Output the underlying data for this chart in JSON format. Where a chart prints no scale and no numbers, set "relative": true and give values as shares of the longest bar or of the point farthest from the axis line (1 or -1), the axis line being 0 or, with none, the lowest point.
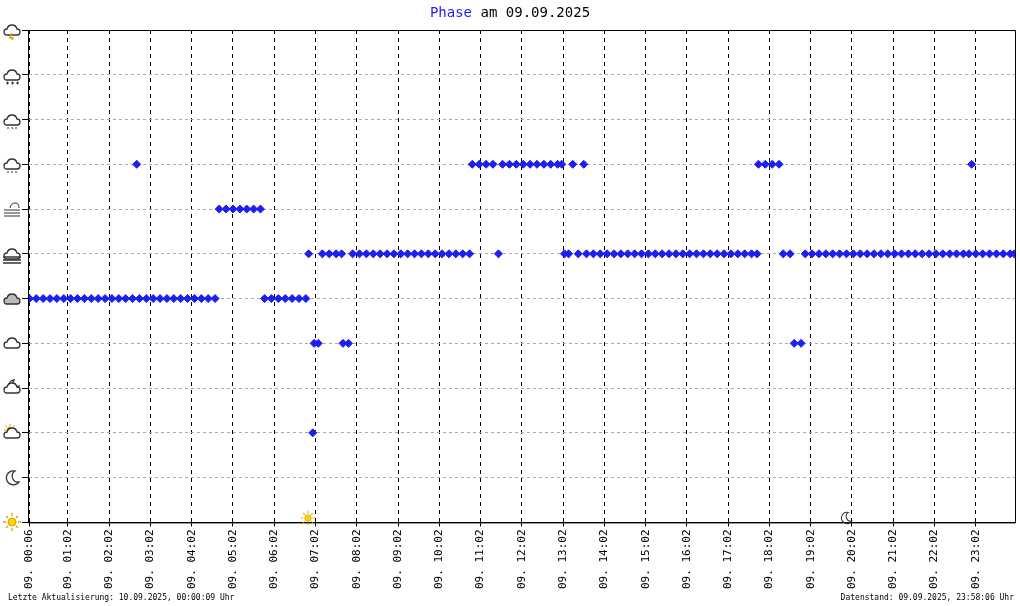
{
  "chart_data": {
    "type": "scatter",
    "title": "Phase am 09.09.2025",
    "relative": true,
    "marker": "diamond",
    "grid": true,
    "legend": false,
    "tick_labels": "x",
    "xlim": [
      "2025-09-09T00:04",
      "2025-09-09T23:59"
    ],
    "xticks": [
      {
        "value": "2025-09-09T00:06",
        "label": "09. 00:06"
      },
      {
        "value": "2025-09-09T01:02",
        "label": "09. 01:02"
      },
      {
        "value": "2025-09-09T02:02",
        "label": "09. 02:02"
      },
      {
        "value": "2025-09-09T03:02",
        "label": "09. 03:02"
      },
      {
        "value": "2025-09-09T04:02",
        "label": "09. 04:02"
      },
      {
        "value": "2025-09-09T05:02",
        "label": "09. 05:02"
      },
      {
        "value": "2025-09-09T06:02",
        "label": "09. 06:02"
      },
      {
        "value": "2025-09-09T07:02",
        "label": "09. 07:02"
      },
      {
        "value": "2025-09-09T08:02",
        "label": "09. 08:02"
      },
      {
        "value": "2025-09-09T09:02",
        "label": "09. 09:02"
      },
      {
        "value": "2025-09-09T10:02",
        "label": "09. 10:02"
      },
      {
        "value": "2025-09-09T11:02",
        "label": "09. 11:02"
      },
      {
        "value": "2025-09-09T12:02",
        "label": "09. 12:02"
      },
      {
        "value": "2025-09-09T13:02",
        "label": "09. 13:02"
      },
      {
        "value": "2025-09-09T14:02",
        "label": "09. 14:02"
      },
      {
        "value": "2025-09-09T15:02",
        "label": "09. 15:02"
      },
      {
        "value": "2025-09-09T16:02",
        "label": "09. 16:02"
      },
      {
        "value": "2025-09-09T17:02",
        "label": "09. 17:02"
      },
      {
        "value": "2025-09-09T18:02",
        "label": "09. 18:02"
      },
      {
        "value": "2025-09-09T19:02",
        "label": "09. 19:02"
      },
      {
        "value": "2025-09-09T20:02",
        "label": "09. 20:02"
      },
      {
        "value": "2025-09-09T21:02",
        "label": "09. 21:02"
      },
      {
        "value": "2025-09-09T22:02",
        "label": "09. 22:02"
      },
      {
        "value": "2025-09-09T23:02",
        "label": "09. 23:02"
      }
    ],
    "series": [
      {
        "color": "#1e1ef0",
        "x": [
          "2025-09-09T00:06",
          "2025-09-09T00:16",
          "2025-09-09T00:26",
          "2025-09-09T00:36",
          "2025-09-09T00:46",
          "2025-09-09T00:56",
          "2025-09-09T01:06",
          "2025-09-09T01:16",
          "2025-09-09T01:26",
          "2025-09-09T01:36",
          "2025-09-09T01:46",
          "2025-09-09T01:56",
          "2025-09-09T02:06",
          "2025-09-09T02:16",
          "2025-09-09T02:26",
          "2025-09-09T02:36",
          "2025-09-09T02:42",
          "2025-09-09T02:46",
          "2025-09-09T02:56",
          "2025-09-09T03:06",
          "2025-09-09T03:16",
          "2025-09-09T03:26",
          "2025-09-09T03:36",
          "2025-09-09T03:46",
          "2025-09-09T03:56",
          "2025-09-09T04:06",
          "2025-09-09T04:16",
          "2025-09-09T04:26",
          "2025-09-09T04:36",
          "2025-09-09T04:42",
          "2025-09-09T04:52",
          "2025-09-09T05:02",
          "2025-09-09T05:12",
          "2025-09-09T05:22",
          "2025-09-09T05:32",
          "2025-09-09T05:42",
          "2025-09-09T05:48",
          "2025-09-09T05:58",
          "2025-09-09T06:08",
          "2025-09-09T06:18",
          "2025-09-09T06:28",
          "2025-09-09T06:38",
          "2025-09-09T06:48",
          "2025-09-09T06:52",
          "2025-09-09T06:58",
          "2025-09-09T07:00",
          "2025-09-09T07:06",
          "2025-09-09T07:12",
          "2025-09-09T07:22",
          "2025-09-09T07:32",
          "2025-09-09T07:40",
          "2025-09-09T07:42",
          "2025-09-09T07:50",
          "2025-09-09T07:56",
          "2025-09-09T08:06",
          "2025-09-09T08:16",
          "2025-09-09T08:26",
          "2025-09-09T08:36",
          "2025-09-09T08:46",
          "2025-09-09T08:56",
          "2025-09-09T09:06",
          "2025-09-09T09:16",
          "2025-09-09T09:26",
          "2025-09-09T09:36",
          "2025-09-09T09:46",
          "2025-09-09T09:56",
          "2025-09-09T10:06",
          "2025-09-09T10:16",
          "2025-09-09T10:26",
          "2025-09-09T10:36",
          "2025-09-09T10:46",
          "2025-09-09T10:50",
          "2025-09-09T11:00",
          "2025-09-09T11:10",
          "2025-09-09T11:20",
          "2025-09-09T11:28",
          "2025-09-09T11:34",
          "2025-09-09T11:44",
          "2025-09-09T11:54",
          "2025-09-09T12:04",
          "2025-09-09T12:14",
          "2025-09-09T12:24",
          "2025-09-09T12:34",
          "2025-09-09T12:44",
          "2025-09-09T12:54",
          "2025-09-09T13:00",
          "2025-09-09T13:04",
          "2025-09-09T13:10",
          "2025-09-09T13:16",
          "2025-09-09T13:24",
          "2025-09-09T13:32",
          "2025-09-09T13:36",
          "2025-09-09T13:46",
          "2025-09-09T13:56",
          "2025-09-09T14:06",
          "2025-09-09T14:16",
          "2025-09-09T14:26",
          "2025-09-09T14:36",
          "2025-09-09T14:46",
          "2025-09-09T14:56",
          "2025-09-09T15:06",
          "2025-09-09T15:16",
          "2025-09-09T15:26",
          "2025-09-09T15:36",
          "2025-09-09T15:46",
          "2025-09-09T15:56",
          "2025-09-09T16:06",
          "2025-09-09T16:16",
          "2025-09-09T16:26",
          "2025-09-09T16:36",
          "2025-09-09T16:46",
          "2025-09-09T16:56",
          "2025-09-09T17:06",
          "2025-09-09T17:16",
          "2025-09-09T17:26",
          "2025-09-09T17:36",
          "2025-09-09T17:44",
          "2025-09-09T17:46",
          "2025-09-09T17:56",
          "2025-09-09T18:06",
          "2025-09-09T18:16",
          "2025-09-09T18:22",
          "2025-09-09T18:32",
          "2025-09-09T18:38",
          "2025-09-09T18:48",
          "2025-09-09T18:54",
          "2025-09-09T19:04",
          "2025-09-09T19:14",
          "2025-09-09T19:24",
          "2025-09-09T19:34",
          "2025-09-09T19:44",
          "2025-09-09T19:54",
          "2025-09-09T20:04",
          "2025-09-09T20:14",
          "2025-09-09T20:24",
          "2025-09-09T20:34",
          "2025-09-09T20:44",
          "2025-09-09T20:54",
          "2025-09-09T21:04",
          "2025-09-09T21:14",
          "2025-09-09T21:24",
          "2025-09-09T21:34",
          "2025-09-09T21:44",
          "2025-09-09T21:54",
          "2025-09-09T22:04",
          "2025-09-09T22:14",
          "2025-09-09T22:24",
          "2025-09-09T22:34",
          "2025-09-09T22:44",
          "2025-09-09T22:52",
          "2025-09-09T22:56",
          "2025-09-09T23:02",
          "2025-09-09T23:12",
          "2025-09-09T23:22",
          "2025-09-09T23:32",
          "2025-09-09T23:42",
          "2025-09-09T23:52",
          "2025-09-09T23:58"
        ],
        "values": [
          0.625,
          0.625,
          0.625,
          0.625,
          0.625,
          0.625,
          0.625,
          0.625,
          0.625,
          0.625,
          0.625,
          0.625,
          0.625,
          0.625,
          0.625,
          0.625,
          1,
          0.625,
          0.625,
          0.625,
          0.625,
          0.625,
          0.625,
          0.625,
          0.625,
          0.625,
          0.625,
          0.625,
          0.625,
          0.875,
          0.875,
          0.875,
          0.875,
          0.875,
          0.875,
          0.875,
          0.625,
          0.625,
          0.625,
          0.625,
          0.625,
          0.625,
          0.625,
          0.75,
          0.25,
          0.5,
          0.5,
          0.75,
          0.75,
          0.75,
          0.75,
          0.5,
          0.5,
          0.75,
          0.75,
          0.75,
          0.75,
          0.75,
          0.75,
          0.75,
          0.75,
          0.75,
          0.75,
          0.75,
          0.75,
          0.75,
          0.75,
          0.75,
          0.75,
          0.75,
          0.75,
          1,
          1,
          1,
          1,
          0.75,
          1,
          1,
          1,
          1,
          1,
          1,
          1,
          1,
          1,
          1,
          0.75,
          0.75,
          1,
          0.75,
          1,
          0.75,
          0.75,
          0.75,
          0.75,
          0.75,
          0.75,
          0.75,
          0.75,
          0.75,
          0.75,
          0.75,
          0.75,
          0.75,
          0.75,
          0.75,
          0.75,
          0.75,
          0.75,
          0.75,
          0.75,
          0.75,
          0.75,
          0.75,
          0.75,
          0.75,
          0.75,
          1,
          1,
          1,
          1,
          0.75,
          0.75,
          0.5,
          0.5,
          0.75,
          0.75,
          0.75,
          0.75,
          0.75,
          0.75,
          0.75,
          0.75,
          0.75,
          0.75,
          0.75,
          0.75,
          0.75,
          0.75,
          0.75,
          0.75,
          0.75,
          0.75,
          0.75,
          0.75,
          0.75,
          0.75,
          0.75,
          0.75,
          0.75,
          1,
          0.75,
          0.75,
          0.75,
          0.75,
          0.75,
          0.75,
          0.75
        ]
      }
    ],
    "annotations": [
      "Letzte Aktualisierung: 10.09.2025, 00:00:09 Uhr",
      "Datenstand: 09.09.2025, 23:58:06 Uhr"
    ]
  }
}
